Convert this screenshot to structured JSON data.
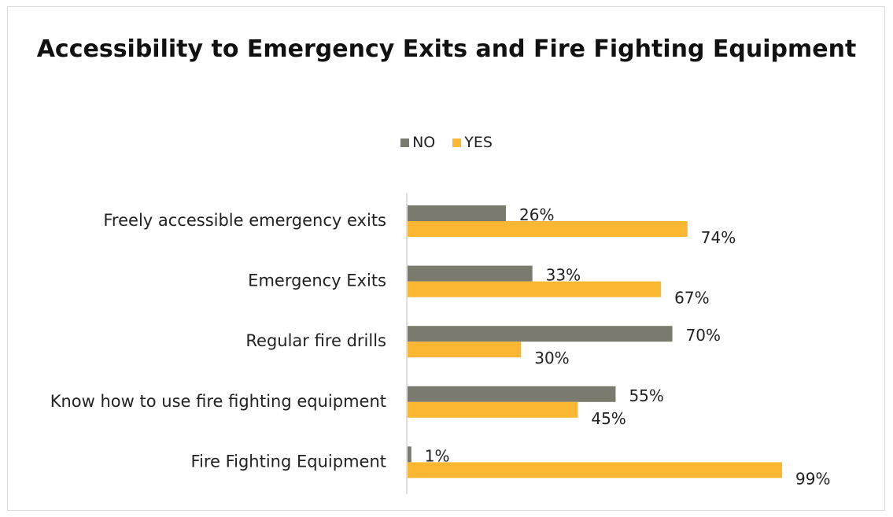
{
  "chart_data": {
    "type": "bar",
    "orientation": "horizontal",
    "title": "Accessibility to Emergency Exits and Fire Fighting Equipment",
    "categories": [
      "Freely accessible emergency exits",
      "Emergency Exits",
      "Regular fire drills",
      "Know how to use fire fighting equipment",
      "Fire Fighting Equipment"
    ],
    "series": [
      {
        "name": "NO",
        "color": "#7a7a6e",
        "values": [
          26,
          33,
          70,
          55,
          1
        ],
        "labels": [
          "26%",
          "33%",
          "70%",
          "55%",
          "1%"
        ]
      },
      {
        "name": "YES",
        "color": "#fbb731",
        "values": [
          74,
          67,
          30,
          45,
          99
        ],
        "labels": [
          "74%",
          "67%",
          "30%",
          "45%",
          "99%"
        ]
      }
    ],
    "xlim": [
      0,
      100
    ],
    "grid": false,
    "legend_position": "top"
  }
}
